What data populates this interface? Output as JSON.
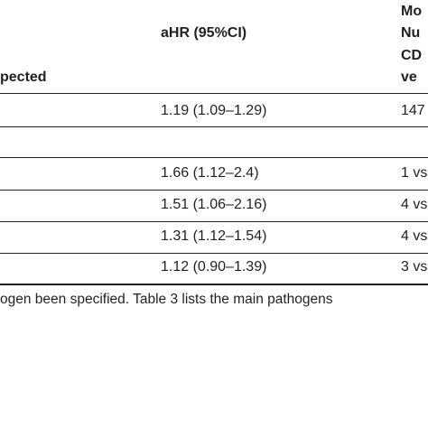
{
  "table": {
    "header": {
      "col1_fragment": "pected",
      "col2": "aHR (95%CI)",
      "col3_lines": [
        "Mo",
        "Nu",
        "CD",
        "ve"
      ]
    },
    "rows": [
      {
        "ahr": "1.19 (1.09–1.29)",
        "col3": "147"
      },
      {
        "ahr": "",
        "col3": ""
      },
      {
        "ahr": "1.66 (1.12–2.4)",
        "col3": "1 vs"
      },
      {
        "ahr": "1.51 (1.06–2.16)",
        "col3": "4 vs"
      },
      {
        "ahr": "1.31 (1.12–1.54)",
        "col3": "4 vs"
      },
      {
        "ahr": "1.12 (0.90–1.39)",
        "col3": "3 vs"
      }
    ]
  },
  "footnote": "ogen been specified. Table 3 lists the main pathogens"
}
